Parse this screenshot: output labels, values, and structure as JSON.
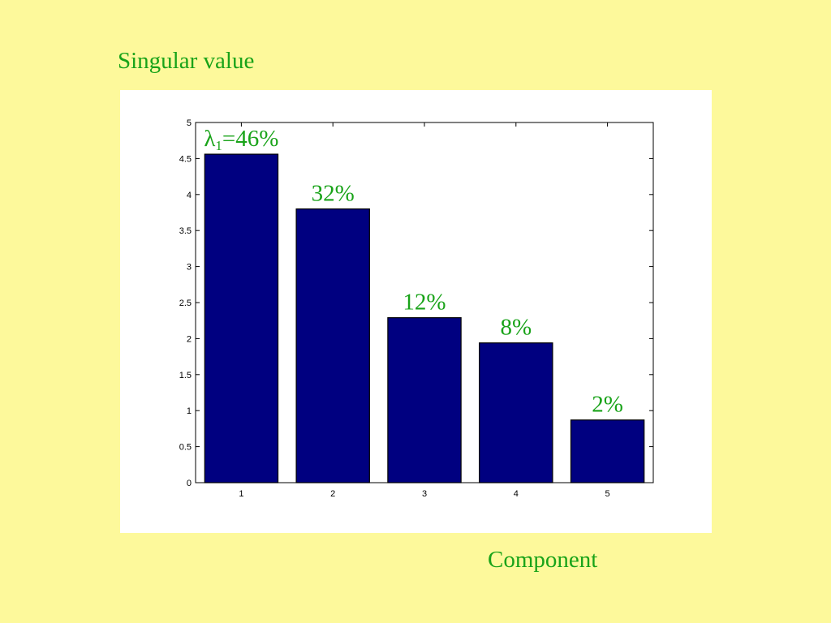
{
  "chart_data": {
    "type": "bar",
    "title": "Singular value",
    "x_label": "Component",
    "categories": [
      1,
      2,
      3,
      4,
      5
    ],
    "values": [
      4.56,
      3.8,
      2.29,
      1.94,
      0.87
    ],
    "color": "#000080",
    "annotations": [
      {
        "symbol": "λ",
        "subscript": "1",
        "text": "=46%"
      },
      {
        "text": "32%"
      },
      {
        "text": "12%"
      },
      {
        "text": "8%"
      },
      {
        "text": "2%"
      }
    ],
    "ylim": [
      0,
      5
    ],
    "yticks": [
      0,
      0.5,
      1,
      1.5,
      2,
      2.5,
      3,
      3.5,
      4,
      4.5,
      5
    ],
    "grid": false
  }
}
